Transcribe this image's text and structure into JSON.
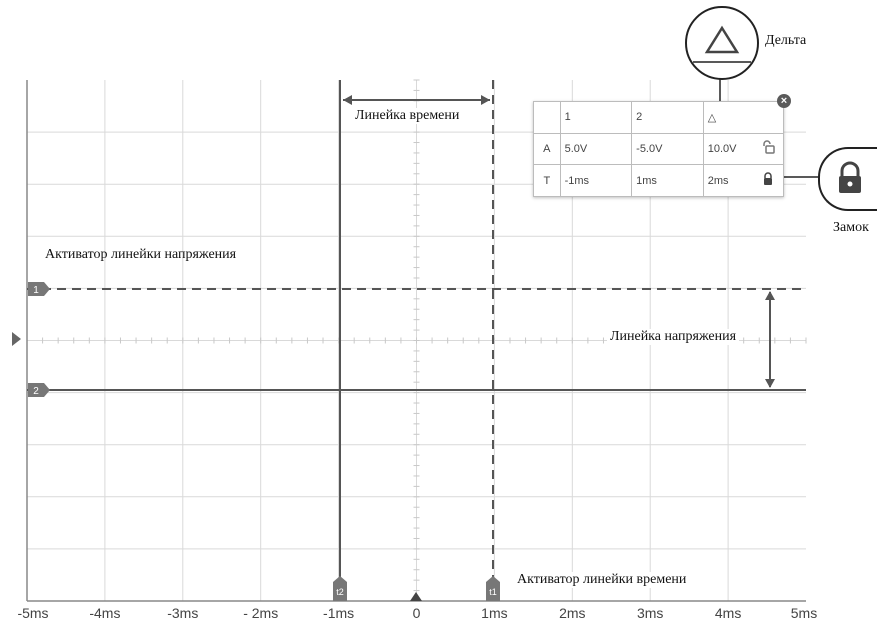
{
  "annotations": {
    "delta_callout": "Дельта",
    "lock_callout": "Замок",
    "time_ruler": "Линейка времени",
    "voltage_ruler_activator": "Активатор линейки напряжения",
    "voltage_ruler": "Линейка напряжения",
    "time_ruler_activator": "Активатор линейки времени"
  },
  "x_axis_ticks": [
    "-5ms",
    "-4ms",
    "-3ms",
    "- 2ms",
    "-1ms",
    "0",
    "1ms",
    "2ms",
    "3ms",
    "4ms",
    "5ms"
  ],
  "ruler_table": {
    "headers": [
      "1",
      "2",
      "△"
    ],
    "rows": [
      {
        "label": "A",
        "v1": "5.0V",
        "v2": "-5.0V",
        "delta": "10.0V",
        "lock": "unlocked"
      },
      {
        "label": "T",
        "v1": "-1ms",
        "v2": "1ms",
        "delta": "2ms",
        "lock": "locked"
      }
    ]
  },
  "markers": {
    "voltage_1": "1",
    "voltage_2": "2",
    "time_1": "t1",
    "time_2": "t2"
  },
  "colors": {
    "grid": "#d9d9d9",
    "ruler": "#555555",
    "axis": "#888888"
  }
}
